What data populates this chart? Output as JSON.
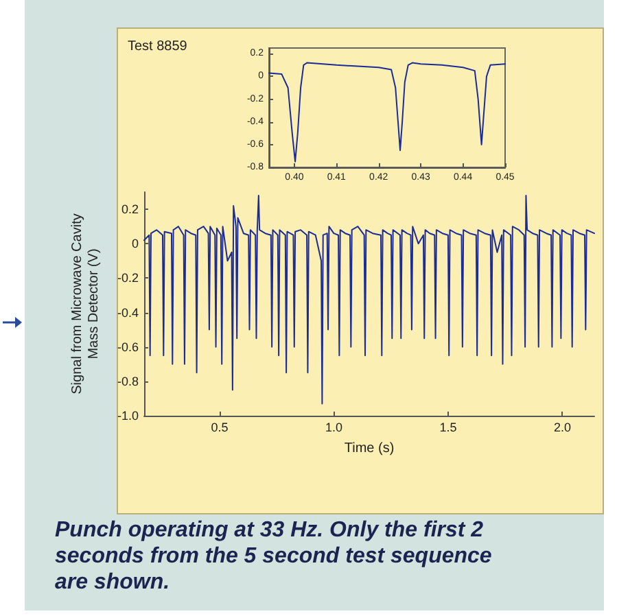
{
  "chart_data": [
    {
      "type": "line",
      "title": "Test 8859",
      "xlabel": "Time (s)",
      "ylabel": "Signal from Microwave Cavity\nMass Detector (V)",
      "xlim": [
        0.17,
        2.14
      ],
      "ylim": [
        -1.0,
        0.3
      ],
      "xticks": [
        0.5,
        {
          "value": 1,
          "label": "1.0"
        },
        1.5,
        {
          "value": 2,
          "label": "2.0"
        }
      ],
      "yticks": [
        0.2,
        0,
        -0.2,
        -0.4,
        -0.6,
        -0.8,
        {
          "value": -1,
          "label": "-1.0"
        }
      ],
      "grid": false,
      "marker": "none",
      "line_style": "solid",
      "annotations": [
        "Punch operating at 33 Hz. Only the first 2 seconds from the 5 second test sequence are shown."
      ],
      "series": [
        {
          "color": "#1c2c96",
          "x": [
            0.17,
            0.192,
            0.196,
            0.2,
            0.225,
            0.251,
            0.255,
            0.259,
            0.29,
            0.294,
            0.298,
            0.32,
            0.343,
            0.347,
            0.351,
            0.375,
            0.396,
            0.4,
            0.404,
            0.43,
            0.451,
            0.455,
            0.459,
            0.48,
            0.484,
            0.488,
            0.506,
            0.51,
            0.514,
            0.535,
            0.553,
            0.557,
            0.561,
            0.572,
            0.576,
            0.58,
            0.605,
            0.627,
            0.631,
            0.635,
            0.657,
            0.661,
            0.665,
            0.671,
            0.675,
            0.7,
            0.725,
            0.729,
            0.733,
            0.755,
            0.759,
            0.763,
            0.788,
            0.792,
            0.796,
            0.823,
            0.827,
            0.831,
            0.855,
            0.882,
            0.886,
            0.89,
            0.92,
            0.945,
            0.949,
            0.953,
            0.971,
            0.975,
            0.979,
            1.0,
            1.02,
            1.024,
            1.028,
            1.05,
            1.071,
            1.075,
            1.079,
            1.105,
            1.133,
            1.137,
            1.141,
            1.17,
            1.206,
            1.21,
            1.214,
            1.235,
            1.251,
            1.255,
            1.259,
            1.29,
            1.294,
            1.298,
            1.32,
            1.337,
            1.341,
            1.345,
            1.37,
            1.392,
            1.396,
            1.4,
            1.42,
            1.441,
            1.445,
            1.449,
            1.475,
            1.5,
            1.504,
            1.508,
            1.535,
            1.559,
            1.563,
            1.567,
            1.595,
            1.623,
            1.627,
            1.631,
            1.66,
            1.686,
            1.69,
            1.694,
            1.715,
            1.735,
            1.739,
            1.743,
            1.774,
            1.778,
            1.782,
            1.81,
            1.833,
            1.837,
            1.841,
            1.846,
            1.87,
            1.892,
            1.896,
            1.9,
            1.93,
            1.951,
            1.955,
            1.959,
            1.99,
            1.994,
            1.998,
            2.02,
            2.039,
            2.043,
            2.047,
            2.075,
            2.098,
            2.102,
            2.106,
            2.14
          ],
          "values": [
            0.02,
            0.05,
            -0.65,
            0.06,
            0.08,
            0.05,
            -0.65,
            0.07,
            0.06,
            -0.7,
            0.08,
            0.1,
            0.05,
            -0.7,
            0.08,
            0.06,
            0.05,
            -0.75,
            0.08,
            0.1,
            0.06,
            -0.5,
            0.1,
            0.05,
            -0.6,
            0.09,
            0.05,
            -0.7,
            0.1,
            -0.1,
            -0.05,
            -0.85,
            0.22,
            0.1,
            -0.55,
            0.15,
            0.06,
            0.05,
            -0.5,
            0.08,
            0.05,
            -0.55,
            0.08,
            0.28,
            0.08,
            0.06,
            0.05,
            -0.6,
            0.08,
            0.05,
            -0.65,
            0.08,
            0.05,
            -0.75,
            0.07,
            0.05,
            -0.6,
            0.07,
            0.08,
            0.05,
            -0.75,
            0.07,
            0.05,
            -0.1,
            -0.93,
            0.05,
            0.06,
            -0.5,
            0.1,
            0.06,
            0.05,
            -0.65,
            0.08,
            0.06,
            0.05,
            -0.6,
            0.08,
            0.1,
            0.05,
            -0.65,
            0.08,
            0.06,
            0.05,
            -0.65,
            0.08,
            0.06,
            0.05,
            -0.55,
            0.08,
            0.05,
            -0.55,
            0.08,
            0.06,
            0.05,
            -0.5,
            0.1,
            0.0,
            0.05,
            -0.55,
            0.08,
            0.06,
            0.05,
            -0.55,
            0.08,
            0.06,
            0.05,
            -0.65,
            0.08,
            0.06,
            0.05,
            -0.6,
            0.08,
            0.06,
            0.05,
            -0.65,
            0.08,
            0.06,
            0.05,
            -0.65,
            0.08,
            -0.05,
            0.05,
            -0.7,
            0.08,
            0.05,
            -0.65,
            0.1,
            0.08,
            0.05,
            -0.6,
            0.28,
            0.08,
            0.06,
            0.05,
            -0.6,
            0.08,
            0.06,
            0.05,
            -0.6,
            0.08,
            0.05,
            -0.55,
            0.08,
            0.06,
            0.05,
            -0.6,
            0.08,
            0.06,
            0.05,
            -0.5,
            0.08,
            0.06
          ]
        }
      ]
    },
    {
      "type": "line",
      "xlim": [
        0.394,
        0.45
      ],
      "ylim": [
        -0.8,
        0.25
      ],
      "xticks": [
        {
          "value": 0.4,
          "label": "0.40"
        },
        {
          "value": 0.41,
          "label": "0.41"
        },
        {
          "value": 0.42,
          "label": "0.42"
        },
        {
          "value": 0.43,
          "label": "0.43"
        },
        {
          "value": 0.44,
          "label": "0.44"
        },
        {
          "value": 0.45,
          "label": "0.45"
        }
      ],
      "yticks": [
        0.2,
        0,
        -0.2,
        -0.4,
        -0.6,
        -0.8
      ],
      "grid": false,
      "marker": "none",
      "line_style": "solid",
      "series": [
        {
          "color": "#1c2c96",
          "x": [
            0.394,
            0.397,
            0.3985,
            0.3995,
            0.4002,
            0.4008,
            0.4015,
            0.4022,
            0.403,
            0.41,
            0.42,
            0.423,
            0.424,
            0.4246,
            0.4251,
            0.4256,
            0.4262,
            0.427,
            0.428,
            0.43,
            0.435,
            0.44,
            0.4428,
            0.4436,
            0.4444,
            0.445,
            0.4456,
            0.4465,
            0.45
          ],
          "values": [
            0.03,
            0.02,
            -0.1,
            -0.5,
            -0.75,
            -0.5,
            -0.1,
            0.1,
            0.12,
            0.1,
            0.08,
            0.06,
            -0.1,
            -0.4,
            -0.65,
            -0.4,
            -0.05,
            0.1,
            0.12,
            0.11,
            0.1,
            0.08,
            0.05,
            -0.2,
            -0.6,
            -0.3,
            0.0,
            0.1,
            0.11
          ]
        }
      ]
    }
  ]
}
